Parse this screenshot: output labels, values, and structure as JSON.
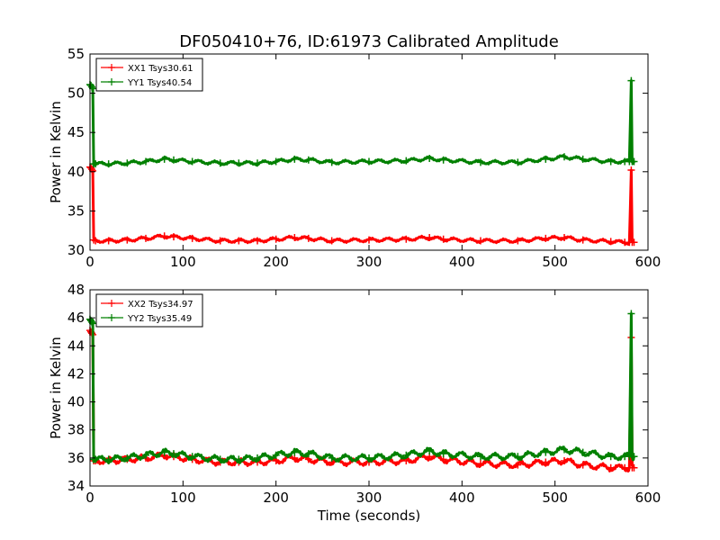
{
  "chart_data": [
    {
      "type": "line",
      "title": "DF050410+76, ID:61973 Calibrated Amplitude",
      "xlabel": "",
      "ylabel": "Power in Kelvin",
      "xlim": [
        0,
        600
      ],
      "ylim": [
        30,
        55
      ],
      "xticks": [
        "0",
        "100",
        "200",
        "300",
        "400",
        "500",
        "600"
      ],
      "yticks": [
        "30",
        "35",
        "40",
        "45",
        "50",
        "55"
      ],
      "grid": false,
      "legend_position": "top-left",
      "series": [
        {
          "name": "XX1 Tsys30.61",
          "color": "#ff0000",
          "x": [
            0,
            1,
            2,
            3,
            4,
            6,
            20,
            40,
            60,
            80,
            90,
            110,
            140,
            160,
            180,
            200,
            220,
            235,
            260,
            300,
            340,
            365,
            380,
            420,
            460,
            490,
            510,
            530,
            560,
            575,
            580,
            582,
            583,
            585
          ],
          "values": [
            40.6,
            40.5,
            40.3,
            40.1,
            31.3,
            31.2,
            31.2,
            31.3,
            31.5,
            31.8,
            31.7,
            31.5,
            31.2,
            31.2,
            31.2,
            31.4,
            31.6,
            31.5,
            31.2,
            31.3,
            31.4,
            31.6,
            31.4,
            31.2,
            31.2,
            31.5,
            31.6,
            31.3,
            31.1,
            31.0,
            31.0,
            40.2,
            31.0,
            31.0
          ]
        },
        {
          "name": "YY1 Tsys40.54",
          "color": "#008000",
          "x": [
            0,
            1,
            2,
            3,
            4,
            6,
            20,
            40,
            60,
            80,
            90,
            110,
            140,
            160,
            180,
            200,
            220,
            235,
            260,
            300,
            340,
            365,
            380,
            420,
            460,
            490,
            510,
            530,
            560,
            575,
            580,
            582,
            583,
            585
          ],
          "values": [
            51.1,
            51.0,
            50.8,
            50.6,
            41.0,
            41.0,
            41.0,
            41.1,
            41.3,
            41.6,
            41.5,
            41.3,
            41.1,
            41.1,
            41.1,
            41.3,
            41.6,
            41.5,
            41.2,
            41.3,
            41.4,
            41.7,
            41.5,
            41.2,
            41.2,
            41.6,
            41.9,
            41.6,
            41.3,
            41.3,
            41.3,
            51.6,
            41.3,
            41.3
          ]
        }
      ]
    },
    {
      "type": "line",
      "title": "",
      "xlabel": "Time (seconds)",
      "ylabel": "Power in Kelvin",
      "xlim": [
        0,
        600
      ],
      "ylim": [
        34,
        48
      ],
      "xticks": [
        "0",
        "100",
        "200",
        "300",
        "400",
        "500",
        "600"
      ],
      "yticks": [
        "34",
        "36",
        "38",
        "40",
        "42",
        "44",
        "46",
        "48"
      ],
      "grid": false,
      "legend_position": "top-left",
      "series": [
        {
          "name": "XX2 Tsys34.97",
          "color": "#ff0000",
          "x": [
            0,
            1,
            2,
            3,
            4,
            6,
            20,
            40,
            60,
            80,
            90,
            110,
            140,
            160,
            180,
            200,
            220,
            235,
            260,
            300,
            340,
            365,
            380,
            420,
            460,
            490,
            510,
            530,
            560,
            575,
            580,
            582,
            583,
            585
          ],
          "values": [
            45.1,
            45.0,
            44.9,
            44.8,
            35.8,
            35.8,
            35.8,
            35.9,
            36.0,
            36.2,
            36.1,
            35.9,
            35.7,
            35.7,
            35.7,
            35.8,
            36.0,
            35.9,
            35.7,
            35.7,
            35.8,
            36.1,
            35.9,
            35.6,
            35.5,
            35.7,
            35.8,
            35.5,
            35.3,
            35.3,
            35.3,
            44.6,
            35.3,
            35.3
          ]
        },
        {
          "name": "YY2 Tsys35.49",
          "color": "#008000",
          "x": [
            0,
            1,
            2,
            3,
            4,
            6,
            20,
            40,
            60,
            80,
            90,
            110,
            140,
            160,
            180,
            200,
            220,
            235,
            260,
            300,
            340,
            365,
            380,
            420,
            460,
            490,
            510,
            530,
            560,
            575,
            580,
            582,
            583,
            585
          ],
          "values": [
            45.9,
            45.8,
            45.7,
            45.6,
            35.9,
            35.9,
            35.9,
            36.0,
            36.2,
            36.4,
            36.3,
            36.1,
            35.9,
            35.9,
            36.0,
            36.2,
            36.4,
            36.3,
            36.0,
            36.0,
            36.2,
            36.5,
            36.3,
            36.1,
            36.1,
            36.4,
            36.6,
            36.4,
            36.1,
            36.1,
            36.1,
            46.3,
            36.1,
            36.1
          ]
        }
      ]
    }
  ]
}
